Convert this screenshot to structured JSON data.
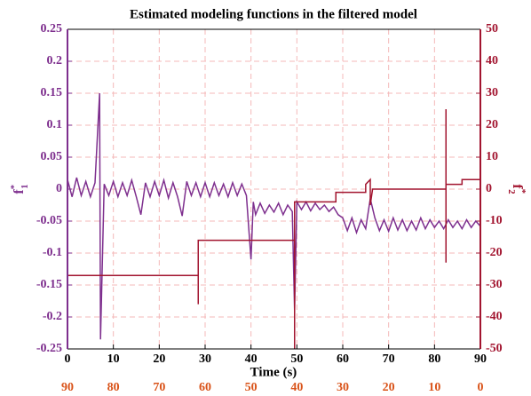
{
  "chart_data": {
    "type": "line",
    "title": "Estimated modeling functions in the filtered model",
    "xlabel": "Time (s)",
    "ylabel": {
      "text": "f",
      "sup": "*",
      "sub": "1"
    },
    "y2label": {
      "text": "f",
      "sup": "*",
      "sub": "2"
    },
    "xlim": [
      0,
      90
    ],
    "xticks": [
      0,
      10,
      20,
      30,
      40,
      50,
      60,
      70,
      80,
      90
    ],
    "x2lim": [
      90,
      0
    ],
    "x2ticks": [
      90,
      80,
      70,
      60,
      50,
      40,
      30,
      20,
      10,
      0
    ],
    "x2color": "#d95319",
    "ylim": [
      -0.25,
      0.25
    ],
    "yticks": [
      -0.25,
      -0.2,
      -0.15,
      -0.1,
      -0.05,
      0,
      0.05,
      0.1,
      0.15,
      0.2,
      0.25
    ],
    "ycolor": "#7e2f8e",
    "y2lim": [
      -50,
      50
    ],
    "y2ticks": [
      -50,
      -40,
      -30,
      -20,
      -10,
      0,
      10,
      20,
      30,
      40,
      50
    ],
    "y2color": "#a2142f",
    "grid": true,
    "series": [
      {
        "color": "#7e2f8e",
        "x": [
          0,
          1,
          2,
          3,
          4,
          5,
          6,
          7,
          7.2,
          8,
          9,
          10,
          11,
          12,
          13,
          14,
          15,
          16,
          17,
          18,
          19,
          20,
          21,
          22,
          23,
          24,
          25,
          26,
          27,
          28,
          29,
          30,
          31,
          32,
          33,
          34,
          35,
          36,
          37,
          38,
          39,
          40,
          40.5,
          41,
          42,
          43,
          44,
          45,
          46,
          47,
          48,
          49,
          49.5,
          50,
          51,
          52,
          53,
          54,
          55,
          56,
          57,
          58,
          59,
          60,
          61,
          62,
          63,
          64,
          65,
          66,
          67,
          68,
          69,
          70,
          71,
          72,
          73,
          74,
          75,
          76,
          77,
          78,
          79,
          80,
          81,
          82,
          83,
          84,
          85,
          86,
          87,
          88,
          89,
          90
        ],
        "values": [
          0.015,
          -0.012,
          0.018,
          -0.01,
          0.012,
          -0.012,
          0.01,
          0.15,
          -0.235,
          0.008,
          -0.01,
          0.012,
          -0.012,
          0.01,
          -0.01,
          0.014,
          -0.012,
          -0.04,
          0.01,
          -0.012,
          0.012,
          -0.01,
          0.014,
          -0.014,
          0.01,
          -0.012,
          -0.042,
          0.012,
          -0.01,
          0.01,
          -0.012,
          0.01,
          -0.012,
          0.01,
          -0.01,
          0.008,
          -0.012,
          0.01,
          -0.01,
          0.008,
          -0.01,
          -0.11,
          -0.02,
          -0.04,
          -0.022,
          -0.038,
          -0.025,
          -0.036,
          -0.022,
          -0.04,
          -0.025,
          -0.035,
          -0.19,
          -0.02,
          -0.032,
          -0.02,
          -0.034,
          -0.022,
          -0.032,
          -0.025,
          -0.035,
          -0.028,
          -0.04,
          -0.045,
          -0.065,
          -0.045,
          -0.068,
          -0.048,
          -0.062,
          -0.015,
          -0.045,
          -0.065,
          -0.048,
          -0.066,
          -0.045,
          -0.064,
          -0.048,
          -0.065,
          -0.05,
          -0.064,
          -0.045,
          -0.062,
          -0.048,
          -0.06,
          -0.05,
          -0.062,
          -0.048,
          -0.06,
          -0.05,
          -0.062,
          -0.048,
          -0.06,
          -0.05,
          -0.058
        ]
      },
      {
        "color": "#a2142f",
        "axis": "y2",
        "x": [
          0,
          28.5,
          28.5,
          28.5,
          28.5,
          49.5,
          49.5,
          49.5,
          58.5,
          58.5,
          65,
          65,
          66,
          66,
          66.5,
          82.5,
          82.5,
          82.5,
          82.5,
          86,
          86,
          90
        ],
        "values": [
          -27,
          -27,
          -36,
          -27,
          -16,
          -16,
          -50,
          -4,
          -4,
          -1,
          -1,
          1.5,
          3,
          -5,
          0,
          0,
          25,
          -23,
          1.5,
          1.5,
          3,
          3
        ]
      }
    ]
  }
}
